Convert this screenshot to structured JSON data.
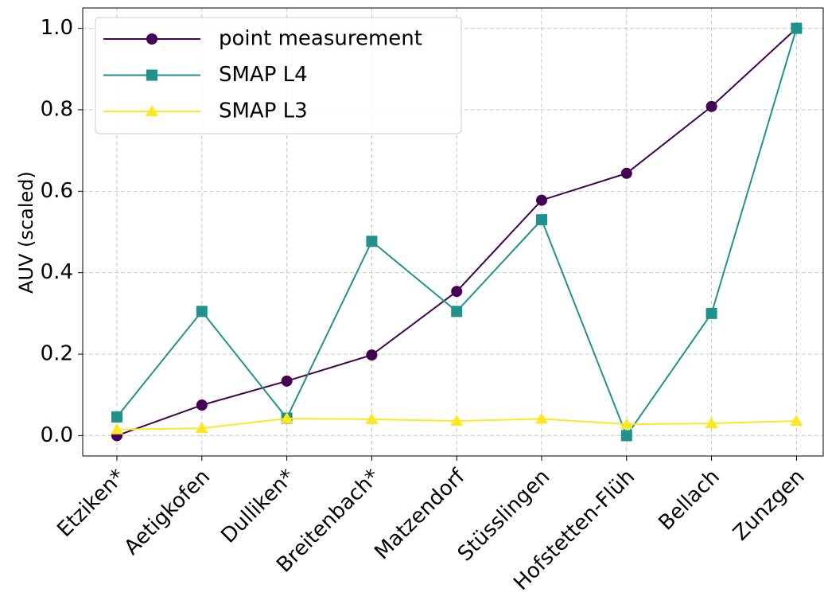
{
  "chart_data": {
    "type": "line",
    "categories": [
      "Etziken*",
      "Aetigkofen",
      "Dulliken*",
      "Breitenbach*",
      "Matzendorf",
      "Stüsslingen",
      "Hofstetten-Flüh",
      "Bellach",
      "Zunzgen"
    ],
    "series": [
      {
        "name": "point measurement",
        "color": "#440154",
        "marker": "circle",
        "values": [
          0.0,
          0.075,
          0.134,
          0.198,
          0.354,
          0.578,
          0.644,
          0.808,
          1.0
        ]
      },
      {
        "name": "SMAP L4",
        "color": "#21918c",
        "marker": "square",
        "values": [
          0.046,
          0.305,
          0.043,
          0.477,
          0.305,
          0.53,
          0.0,
          0.3,
          1.0
        ]
      },
      {
        "name": "SMAP L3",
        "color": "#fde725",
        "marker": "triangle",
        "values": [
          0.015,
          0.018,
          0.042,
          0.04,
          0.036,
          0.041,
          0.028,
          0.03,
          0.036
        ]
      }
    ],
    "ylabel": "AUV (scaled)",
    "ylim": [
      -0.05,
      1.05
    ],
    "yticks": [
      {
        "value": 0,
        "label": "0.0"
      },
      0.2,
      0.4,
      0.6,
      0.8,
      {
        "value": 1,
        "label": "1.0"
      }
    ],
    "grid": true,
    "legend": "upper left"
  }
}
